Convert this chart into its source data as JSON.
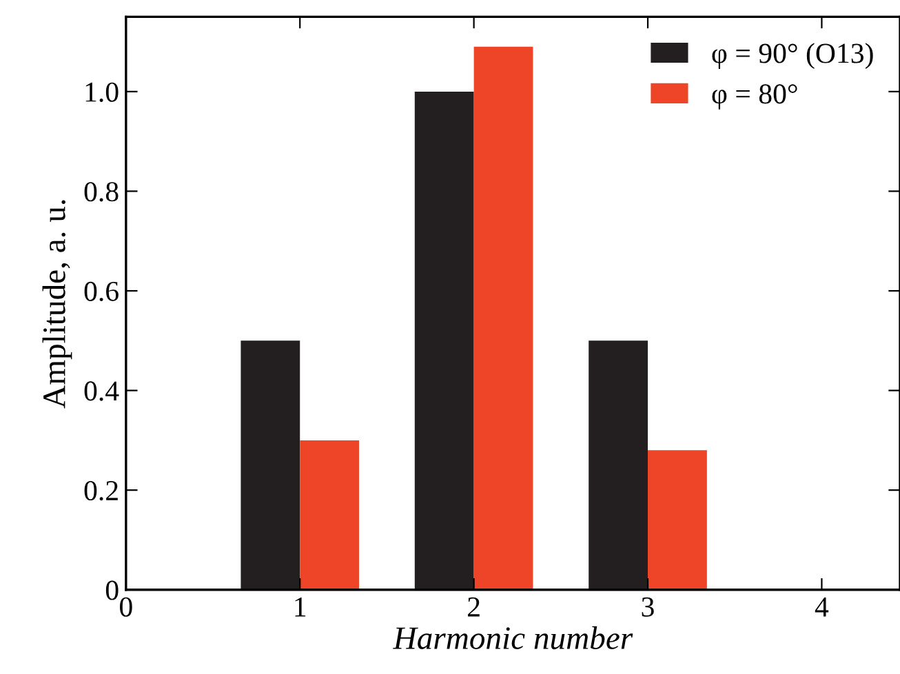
{
  "chart_data": {
    "type": "bar",
    "xlabel": "Harmonic number",
    "ylabel": "Amplitude, a. u.",
    "x": [
      1,
      2,
      3
    ],
    "series": [
      {
        "name": "φ = 90° (O13)",
        "color": "#231f20",
        "values": [
          0.5,
          1.0,
          0.5
        ]
      },
      {
        "name": "φ = 80°",
        "color": "#ee4427",
        "values": [
          0.3,
          1.09,
          0.28
        ]
      }
    ],
    "xlim": [
      0,
      4.45
    ],
    "xticks": [
      0,
      1,
      2,
      3,
      4
    ],
    "ylim": [
      0,
      1.15
    ],
    "yticks": [
      0,
      {
        "value": 0.2,
        "label": "0.2"
      },
      {
        "value": 0.4,
        "label": "0.4"
      },
      {
        "value": 0.6,
        "label": "0.6"
      },
      {
        "value": 0.8,
        "label": "0.8"
      },
      {
        "value": 1.0,
        "label": "1.0"
      }
    ],
    "legend": "top right",
    "grid": false
  }
}
